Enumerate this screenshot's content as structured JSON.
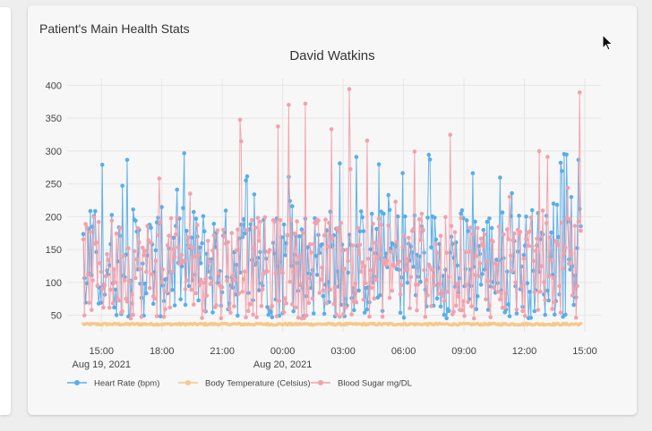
{
  "card": {
    "title": "Patient's Main Health Stats"
  },
  "colors": {
    "heart_rate": "#5aaee8",
    "body_temperature": "#f6c98a",
    "blood_sugar": "#f2a1ac",
    "grid": "#e6e6e6",
    "text": "#444444"
  },
  "chart_data": {
    "type": "line",
    "title": "David Watkins",
    "xlabel": "",
    "ylabel": "",
    "ylim": [
      25,
      410
    ],
    "yticks": [
      50,
      100,
      150,
      200,
      250,
      300,
      350,
      400
    ],
    "x_range_hours": [
      13.3,
      39.8
    ],
    "xticks": [
      {
        "label": "15:00",
        "sublabel": "Aug 19, 2021",
        "hour": 15
      },
      {
        "label": "18:00",
        "sublabel": "",
        "hour": 18
      },
      {
        "label": "21:00",
        "sublabel": "",
        "hour": 21
      },
      {
        "label": "00:00",
        "sublabel": "Aug 20, 2021",
        "hour": 24
      },
      {
        "label": "03:00",
        "sublabel": "",
        "hour": 27
      },
      {
        "label": "06:00",
        "sublabel": "",
        "hour": 30
      },
      {
        "label": "09:00",
        "sublabel": "",
        "hour": 33
      },
      {
        "label": "12:00",
        "sublabel": "",
        "hour": 36
      },
      {
        "label": "15:00",
        "sublabel": "",
        "hour": 39
      }
    ],
    "legend_placement": "bottom-left",
    "grid": true,
    "data_start_hour": 14.1,
    "data_end_hour": 38.8,
    "series": [
      {
        "name": "Heart Rate (bpm)",
        "color": "#5aaee8",
        "typical_range": [
          45,
          215
        ],
        "max_observed": 300
      },
      {
        "name": "Body Temperature (Celsius)",
        "color": "#f6c98a",
        "typical_range": [
          35,
          38
        ]
      },
      {
        "name": "Blood Sugar mg/DL",
        "color": "#f2a1ac",
        "typical_range": [
          45,
          200
        ],
        "max_observed": 397
      }
    ]
  }
}
